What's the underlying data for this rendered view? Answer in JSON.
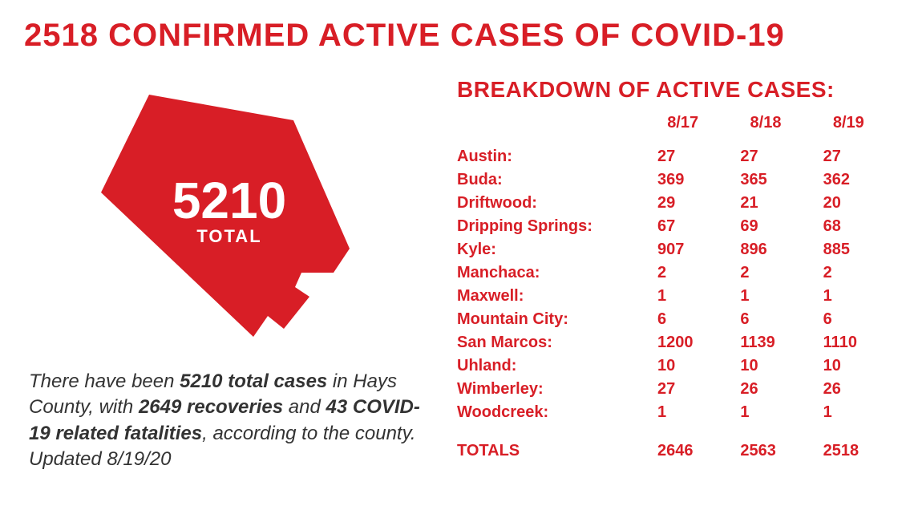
{
  "colors": {
    "primary": "#d81e26",
    "text_dark": "#333333",
    "background": "#ffffff"
  },
  "typography": {
    "headline_fontsize": 40,
    "shape_number_fontsize": 64,
    "shape_total_fontsize": 22,
    "summary_fontsize": 24,
    "breakdown_title_fontsize": 28,
    "table_fontsize": 20
  },
  "headline": "2518 CONFIRMED ACTIVE CASES OF COVID-19",
  "shape": {
    "number": "5210",
    "label": "TOTAL"
  },
  "summary": {
    "prefix": "There have been ",
    "bold1": "5210 total cases",
    "mid1": " in Hays County, with ",
    "bold2": "2649 recoveries",
    "mid2": " and ",
    "bold3": "43 COVID-19 related fatalities",
    "suffix": ", according to the county. Updated 8/19/20"
  },
  "breakdown": {
    "title": "BREAKDOWN OF ACTIVE CASES:",
    "dates": [
      "8/17",
      "8/18",
      "8/19"
    ],
    "rows": [
      {
        "city": "Austin:",
        "vals": [
          "27",
          "27",
          "27"
        ]
      },
      {
        "city": "Buda:",
        "vals": [
          "369",
          "365",
          "362"
        ]
      },
      {
        "city": "Driftwood:",
        "vals": [
          "29",
          "21",
          "20"
        ]
      },
      {
        "city": "Dripping Springs:",
        "vals": [
          "67",
          "69",
          "68"
        ]
      },
      {
        "city": "Kyle:",
        "vals": [
          "907",
          "896",
          "885"
        ]
      },
      {
        "city": "Manchaca:",
        "vals": [
          "2",
          "2",
          "2"
        ]
      },
      {
        "city": "Maxwell:",
        "vals": [
          "1",
          "1",
          "1"
        ]
      },
      {
        "city": "Mountain City:",
        "vals": [
          "6",
          "6",
          "6"
        ]
      },
      {
        "city": "San Marcos:",
        "vals": [
          "1200",
          "1139",
          "1110"
        ]
      },
      {
        "city": "Uhland:",
        "vals": [
          "10",
          "10",
          "10"
        ]
      },
      {
        "city": "Wimberley:",
        "vals": [
          "27",
          "26",
          "26"
        ]
      },
      {
        "city": "Woodcreek:",
        "vals": [
          "1",
          "1",
          "1"
        ]
      }
    ],
    "totals": {
      "label": "TOTALS",
      "vals": [
        "2646",
        "2563",
        "2518"
      ]
    }
  }
}
